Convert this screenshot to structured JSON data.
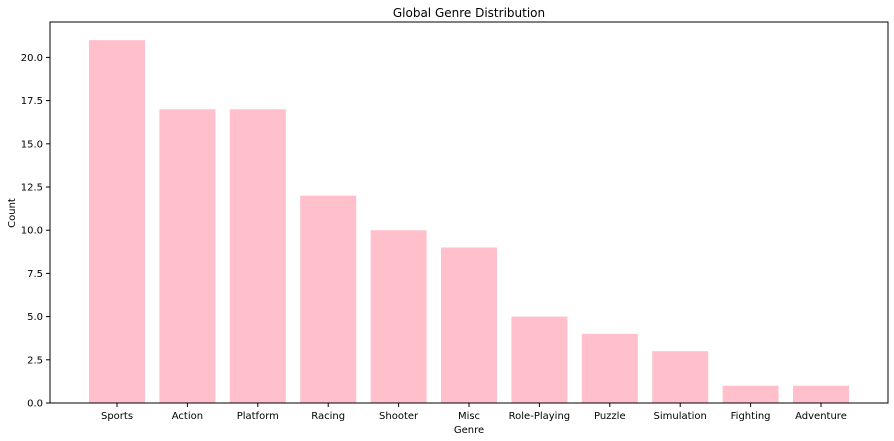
{
  "chart_data": {
    "type": "bar",
    "title": "Global Genre Distribution",
    "xlabel": "Genre",
    "ylabel": "Count",
    "categories": [
      "Sports",
      "Action",
      "Platform",
      "Racing",
      "Shooter",
      "Misc",
      "Role-Playing",
      "Puzzle",
      "Simulation",
      "Fighting",
      "Adventure"
    ],
    "values": [
      21,
      17,
      17,
      12,
      10,
      9,
      5,
      4,
      3,
      1,
      1
    ],
    "ylim": [
      0,
      22.05
    ],
    "yticks": [
      0.0,
      2.5,
      5.0,
      7.5,
      10.0,
      12.5,
      15.0,
      17.5,
      20.0
    ],
    "ytick_labels": [
      "0.0",
      "2.5",
      "5.0",
      "7.5",
      "10.0",
      "12.5",
      "15.0",
      "17.5",
      "20.0"
    ],
    "grid": false,
    "bar_color": "#ffc0cb"
  }
}
